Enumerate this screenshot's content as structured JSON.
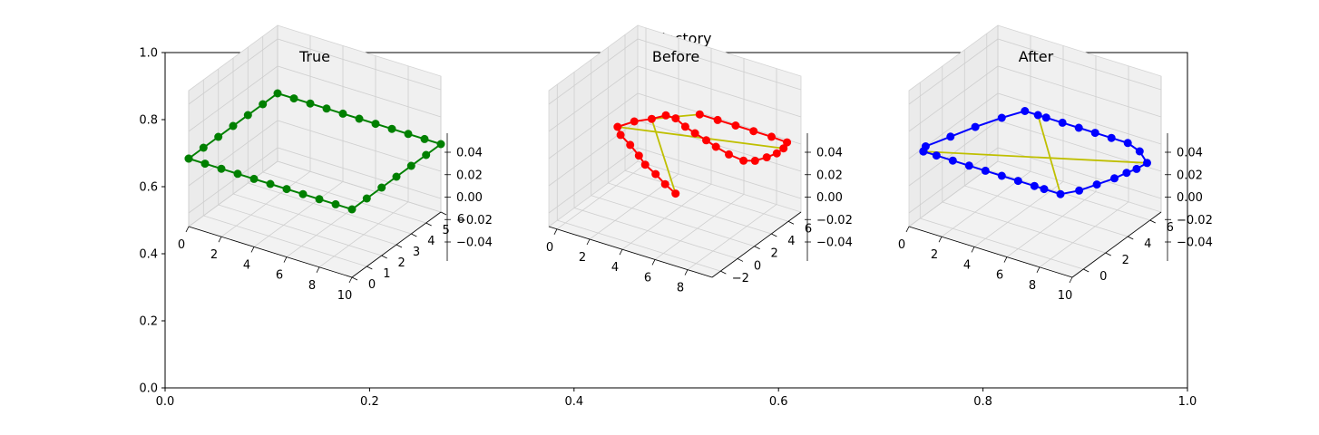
{
  "figure": {
    "title": "Trajectory"
  },
  "chart_data": [
    {
      "type": "axes2d",
      "role": "background-axes",
      "xlim": [
        0.0,
        1.0
      ],
      "ylim": [
        0.0,
        1.0
      ],
      "xticks": [
        "0.0",
        "0.2",
        "0.4",
        "0.6",
        "0.8",
        "1.0"
      ],
      "yticks": [
        "0.0",
        "0.2",
        "0.4",
        "0.6",
        "0.8",
        "1.0"
      ]
    },
    {
      "type": "line3d",
      "title": "True",
      "xlim": [
        0,
        10
      ],
      "ylim": [
        0,
        6
      ],
      "zlim": [
        -0.05,
        0.05
      ],
      "xticks": [
        "0",
        "2",
        "4",
        "6",
        "8",
        "10"
      ],
      "yticks": [
        "0",
        "1",
        "2",
        "3",
        "4",
        "5",
        "6"
      ],
      "zticks": [
        "0.04",
        "0.02",
        "0.00",
        "−0.02",
        "−0.04"
      ],
      "series": [
        {
          "color": "#008000",
          "marker": "o",
          "points": [
            {
              "x": 0,
              "y": 0
            },
            {
              "x": 1,
              "y": 0
            },
            {
              "x": 2,
              "y": 0
            },
            {
              "x": 3,
              "y": 0
            },
            {
              "x": 4,
              "y": 0
            },
            {
              "x": 5,
              "y": 0
            },
            {
              "x": 6,
              "y": 0
            },
            {
              "x": 7,
              "y": 0
            },
            {
              "x": 8,
              "y": 0
            },
            {
              "x": 9,
              "y": 0
            },
            {
              "x": 10,
              "y": 0
            },
            {
              "x": 10,
              "y": 1
            },
            {
              "x": 10,
              "y": 2
            },
            {
              "x": 10,
              "y": 3
            },
            {
              "x": 10,
              "y": 4
            },
            {
              "x": 10,
              "y": 5
            },
            {
              "x": 10,
              "y": 6
            },
            {
              "x": 9,
              "y": 6
            },
            {
              "x": 8,
              "y": 6
            },
            {
              "x": 7,
              "y": 6
            },
            {
              "x": 6,
              "y": 6
            },
            {
              "x": 5,
              "y": 6
            },
            {
              "x": 4,
              "y": 6
            },
            {
              "x": 3,
              "y": 6
            },
            {
              "x": 2,
              "y": 6
            },
            {
              "x": 1,
              "y": 6
            },
            {
              "x": 0,
              "y": 6
            },
            {
              "x": 0,
              "y": 5
            },
            {
              "x": 0,
              "y": 4
            },
            {
              "x": 0,
              "y": 3
            },
            {
              "x": 0,
              "y": 2
            },
            {
              "x": 0,
              "y": 1
            },
            {
              "x": 0,
              "y": 0
            }
          ]
        }
      ],
      "constraints": []
    },
    {
      "type": "line3d",
      "title": "Before",
      "xlim": [
        -0.5,
        9.5
      ],
      "ylim": [
        -3,
        7.5
      ],
      "zlim": [
        -0.05,
        0.05
      ],
      "xticks": [
        "0",
        "2",
        "4",
        "6",
        "8"
      ],
      "yticks": [
        "−2",
        "0",
        "2",
        "4",
        "6"
      ],
      "zticks": [
        "0.04",
        "0.02",
        "0.00",
        "−0.02",
        "−0.04"
      ],
      "series": [
        {
          "color": "#ff0000",
          "marker": "o",
          "points": [
            {
              "x": 7.0,
              "y": -2.5
            },
            {
              "x": 6.0,
              "y": -1.8
            },
            {
              "x": 5.0,
              "y": -1.0
            },
            {
              "x": 4.0,
              "y": -0.3
            },
            {
              "x": 3.2,
              "y": 0.5
            },
            {
              "x": 2.2,
              "y": 1.4
            },
            {
              "x": 1.2,
              "y": 2.2
            },
            {
              "x": 0.6,
              "y": 3.0
            },
            {
              "x": 1.0,
              "y": 4.2
            },
            {
              "x": 1.6,
              "y": 5.1
            },
            {
              "x": 2.0,
              "y": 6.0
            },
            {
              "x": 2.6,
              "y": 6.0
            },
            {
              "x": 3.5,
              "y": 5.4
            },
            {
              "x": 4.3,
              "y": 5.0
            },
            {
              "x": 5.2,
              "y": 4.6
            },
            {
              "x": 6.0,
              "y": 4.2
            },
            {
              "x": 7.0,
              "y": 3.8
            },
            {
              "x": 8.0,
              "y": 3.6
            },
            {
              "x": 8.5,
              "y": 4.0
            },
            {
              "x": 8.8,
              "y": 4.8
            },
            {
              "x": 9.0,
              "y": 5.6
            },
            {
              "x": 9.0,
              "y": 6.4
            },
            {
              "x": 8.8,
              "y": 7.2
            },
            {
              "x": 7.8,
              "y": 7.3
            },
            {
              "x": 6.7,
              "y": 7.3
            },
            {
              "x": 5.6,
              "y": 7.3
            },
            {
              "x": 4.5,
              "y": 7.3
            },
            {
              "x": 3.4,
              "y": 7.3
            }
          ]
        }
      ],
      "constraints": [
        {
          "color": "#bfbf00",
          "from": {
            "x": 0.6,
            "y": 3.0
          },
          "to": {
            "x": 9.0,
            "y": 6.4
          }
        },
        {
          "color": "#bfbf00",
          "from": {
            "x": 1.6,
            "y": 5.1
          },
          "to": {
            "x": 7.0,
            "y": -2.5
          }
        },
        {
          "color": "#bfbf00",
          "from": {
            "x": 1.6,
            "y": 5.1
          },
          "to": {
            "x": 3.4,
            "y": 7.3
          }
        }
      ]
    },
    {
      "type": "line3d",
      "title": "After",
      "xlim": [
        0,
        10
      ],
      "ylim": [
        -1,
        7
      ],
      "zlim": [
        -0.05,
        0.05
      ],
      "xticks": [
        "0",
        "2",
        "4",
        "6",
        "8",
        "10"
      ],
      "yticks": [
        "0",
        "2",
        "4",
        "6"
      ],
      "zticks": [
        "0.04",
        "0.02",
        "0.00",
        "−0.02",
        "−0.04"
      ],
      "series": [
        {
          "color": "#0000ff",
          "marker": "o",
          "points": [
            {
              "x": 0.2,
              "y": 0.0
            },
            {
              "x": 1.0,
              "y": 0.0
            },
            {
              "x": 2.0,
              "y": 0.0
            },
            {
              "x": 3.0,
              "y": 0.0
            },
            {
              "x": 4.0,
              "y": 0.0
            },
            {
              "x": 5.0,
              "y": 0.0
            },
            {
              "x": 6.0,
              "y": 0.0
            },
            {
              "x": 7.0,
              "y": 0.0
            },
            {
              "x": 7.6,
              "y": 0.0
            },
            {
              "x": 8.6,
              "y": 0.0
            },
            {
              "x": 9.2,
              "y": 0.8
            },
            {
              "x": 9.6,
              "y": 1.8
            },
            {
              "x": 10.0,
              "y": 2.8
            },
            {
              "x": 10.2,
              "y": 3.6
            },
            {
              "x": 10.4,
              "y": 4.2
            },
            {
              "x": 10.5,
              "y": 5.0
            },
            {
              "x": 9.5,
              "y": 5.8
            },
            {
              "x": 8.5,
              "y": 6.2
            },
            {
              "x": 7.5,
              "y": 6.2
            },
            {
              "x": 6.5,
              "y": 6.2
            },
            {
              "x": 5.5,
              "y": 6.2
            },
            {
              "x": 4.5,
              "y": 6.2
            },
            {
              "x": 3.5,
              "y": 6.2
            },
            {
              "x": 3.0,
              "y": 6.2
            },
            {
              "x": 2.2,
              "y": 6.2
            },
            {
              "x": 1.6,
              "y": 5.0
            },
            {
              "x": 1.0,
              "y": 3.5
            },
            {
              "x": 0.5,
              "y": 2.0
            },
            {
              "x": 0.0,
              "y": 0.5
            },
            {
              "x": 0.2,
              "y": 0.0
            }
          ]
        }
      ],
      "constraints": [
        {
          "color": "#bfbf00",
          "from": {
            "x": 0.2,
            "y": 0.0
          },
          "to": {
            "x": 10.5,
            "y": 5.0
          }
        },
        {
          "color": "#bfbf00",
          "from": {
            "x": 8.6,
            "y": 0.0
          },
          "to": {
            "x": 3.0,
            "y": 6.2
          }
        }
      ]
    }
  ]
}
